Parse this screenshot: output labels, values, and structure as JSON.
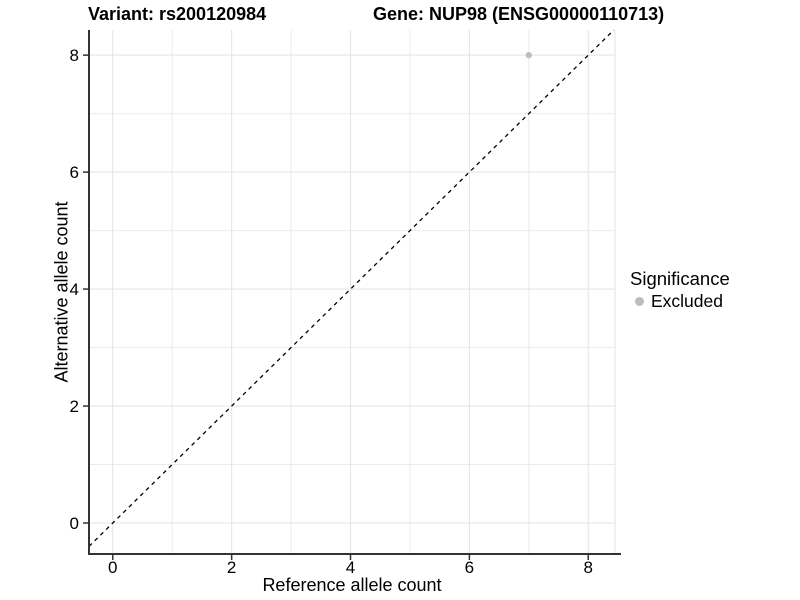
{
  "figure": {
    "background": "#FFFFFF"
  },
  "chart_data": {
    "type": "scatter",
    "title_left": "Variant: rs200120984",
    "title_right": "Gene: NUP98 (ENSG00000110713)",
    "xlabel": "Reference allele count",
    "ylabel": "Alternative allele count",
    "xlim": [
      -0.4,
      8.45
    ],
    "ylim": [
      -0.53,
      8.43
    ],
    "xticks": [
      0,
      2,
      4,
      6,
      8
    ],
    "yticks": [
      0,
      2,
      4,
      6,
      8
    ],
    "xticks_minor": [
      1,
      3,
      5,
      7
    ],
    "yticks_minor": [
      1,
      3,
      5,
      7
    ],
    "grid": true,
    "identity_line": {
      "slope": 1,
      "intercept": 0,
      "style": "dashed",
      "color": "#000000"
    },
    "series": [
      {
        "name": "Excluded",
        "color": "#BDBDBD",
        "points": [
          {
            "x": 7,
            "y": 8
          }
        ]
      }
    ],
    "legend": {
      "title": "Significance",
      "position": "right",
      "entries": [
        {
          "label": "Excluded",
          "color": "#BDBDBD",
          "marker": "circle"
        }
      ]
    },
    "colors": {
      "grid_major": "#E3E3E3",
      "grid_minor": "#EBEBEB",
      "axis": "#333333",
      "panel_edge": "#E3E3E3"
    }
  }
}
